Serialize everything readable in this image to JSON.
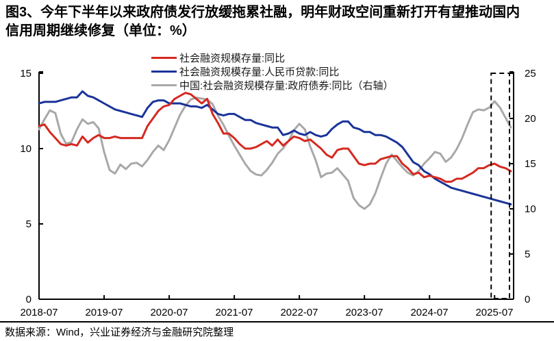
{
  "header": {
    "title_line1": "图3、今年下半年以来政府债发行放缓拖累社融，明年财政空间重新打开有望推动国内",
    "title_line2": "信用周期继续修复（单位：%）"
  },
  "footer": {
    "source": "数据来源：Wind，兴业证券经济与金融研究院整理"
  },
  "chart_data": {
    "type": "line",
    "unit": "%",
    "grid": false,
    "legend_position": "top-center",
    "x_tick_labels": [
      "2018-07",
      "2019-07",
      "2020-07",
      "2021-07",
      "2022-07",
      "2023-07",
      "2024-07",
      "2025-07"
    ],
    "left_axis": {
      "min": 0,
      "max": 15,
      "ticks": [
        0,
        5,
        10,
        15
      ]
    },
    "right_axis": {
      "min": 0,
      "max": 25,
      "ticks": [
        0,
        5,
        10,
        15,
        20,
        25
      ]
    },
    "highlight_box": {
      "from": "2025-07",
      "to": "2025-10",
      "style": "dashed"
    },
    "x": [
      "2018-07",
      "2018-08",
      "2018-09",
      "2018-10",
      "2018-11",
      "2018-12",
      "2019-01",
      "2019-02",
      "2019-03",
      "2019-04",
      "2019-05",
      "2019-06",
      "2019-07",
      "2019-08",
      "2019-09",
      "2019-10",
      "2019-11",
      "2019-12",
      "2020-01",
      "2020-02",
      "2020-03",
      "2020-04",
      "2020-05",
      "2020-06",
      "2020-07",
      "2020-08",
      "2020-09",
      "2020-10",
      "2020-11",
      "2020-12",
      "2021-01",
      "2021-02",
      "2021-03",
      "2021-04",
      "2021-05",
      "2021-06",
      "2021-07",
      "2021-08",
      "2021-09",
      "2021-10",
      "2021-11",
      "2021-12",
      "2022-01",
      "2022-02",
      "2022-03",
      "2022-04",
      "2022-05",
      "2022-06",
      "2022-07",
      "2022-08",
      "2022-09",
      "2022-10",
      "2022-11",
      "2022-12",
      "2023-01",
      "2023-02",
      "2023-03",
      "2023-04",
      "2023-05",
      "2023-06",
      "2023-07",
      "2023-08",
      "2023-09",
      "2023-10",
      "2023-11",
      "2023-12",
      "2024-01",
      "2024-02",
      "2024-03",
      "2024-04",
      "2024-05",
      "2024-06",
      "2024-07",
      "2024-08",
      "2024-09",
      "2024-10",
      "2024-11",
      "2024-12",
      "2025-01",
      "2025-02",
      "2025-03",
      "2025-04",
      "2025-05",
      "2025-06",
      "2025-07",
      "2025-08",
      "2025-09",
      "2025-10"
    ],
    "series": [
      {
        "id": "tsf-yoy",
        "name": "社会融资规模存量:同比",
        "color": "#D5281F",
        "axis": "left",
        "values": [
          11.5,
          11.6,
          11.1,
          10.7,
          10.3,
          10.2,
          10.3,
          10.2,
          10.8,
          10.4,
          10.7,
          10.9,
          10.7,
          10.7,
          10.8,
          10.7,
          10.7,
          10.7,
          10.7,
          10.7,
          11.5,
          12.0,
          12.5,
          12.8,
          12.9,
          13.3,
          13.5,
          13.7,
          13.6,
          13.3,
          13.0,
          13.3,
          12.3,
          11.7,
          11.0,
          11.0,
          10.7,
          10.3,
          10.0,
          10.0,
          10.1,
          10.3,
          10.5,
          10.2,
          10.6,
          10.2,
          10.5,
          10.8,
          10.7,
          10.5,
          10.6,
          10.3,
          10.0,
          9.6,
          9.4,
          9.9,
          10.0,
          10.0,
          9.5,
          9.0,
          8.9,
          9.0,
          9.0,
          9.3,
          9.4,
          9.5,
          9.5,
          9.0,
          8.7,
          8.3,
          8.4,
          8.1,
          8.2,
          8.1,
          8.0,
          7.8,
          7.8,
          8.0,
          8.0,
          8.2,
          8.4,
          8.7,
          8.7,
          8.9,
          9.0,
          8.8,
          8.7,
          8.5
        ]
      },
      {
        "id": "rmb-loans-yoy",
        "name": "社会融资规模存量:人民币贷款:同比",
        "color": "#1A3399",
        "axis": "left",
        "values": [
          13.0,
          13.1,
          13.1,
          13.1,
          13.2,
          13.3,
          13.4,
          13.4,
          13.8,
          13.5,
          13.4,
          13.2,
          13.0,
          12.8,
          12.6,
          12.5,
          12.4,
          12.3,
          12.2,
          12.1,
          12.7,
          13.1,
          13.2,
          13.2,
          13.0,
          13.0,
          13.0,
          12.9,
          12.8,
          12.8,
          12.7,
          12.9,
          12.6,
          12.3,
          12.2,
          12.3,
          12.3,
          12.1,
          11.9,
          11.9,
          11.7,
          11.6,
          11.5,
          11.4,
          11.4,
          10.9,
          11.0,
          11.2,
          11.0,
          10.9,
          11.1,
          10.9,
          10.8,
          10.9,
          11.3,
          11.6,
          11.8,
          11.8,
          11.4,
          11.3,
          11.1,
          11.1,
          10.9,
          10.9,
          10.8,
          10.6,
          10.4,
          10.1,
          9.6,
          9.1,
          8.9,
          8.5,
          8.3,
          8.0,
          7.8,
          7.6,
          7.4,
          7.3,
          7.2,
          7.1,
          7.0,
          6.9,
          6.8,
          6.7,
          6.6,
          6.5,
          6.4,
          6.3
        ]
      },
      {
        "id": "gov-bonds-yoy",
        "name": "中国:社会融资规模存量:政府债券:同比（右轴）",
        "color": "#A8A8A8",
        "axis": "right",
        "values": [
          18.8,
          19.9,
          20.9,
          20.6,
          18.3,
          17.2,
          17.4,
          18.8,
          19.9,
          19.4,
          19.6,
          18.9,
          16.3,
          14.3,
          13.9,
          14.9,
          14.4,
          15.0,
          15.1,
          14.7,
          15.4,
          16.3,
          17.0,
          16.5,
          17.6,
          19.0,
          20.4,
          21.4,
          22.1,
          22.3,
          22.2,
          22.1,
          21.6,
          20.3,
          19.3,
          18.1,
          17.0,
          16.0,
          15.0,
          14.2,
          13.8,
          13.7,
          14.3,
          15.1,
          16.1,
          16.7,
          17.5,
          18.7,
          19.4,
          18.8,
          16.9,
          15.4,
          13.5,
          13.9,
          14.0,
          14.5,
          13.8,
          13.1,
          11.2,
          10.4,
          10.0,
          10.5,
          11.7,
          13.4,
          15.0,
          16.0,
          15.3,
          14.6,
          14.0,
          13.7,
          14.2,
          15.0,
          15.6,
          16.3,
          16.1,
          15.2,
          15.7,
          16.6,
          17.8,
          19.3,
          20.7,
          21.0,
          20.9,
          21.2,
          21.9,
          21.2,
          20.1,
          19.0
        ]
      }
    ]
  }
}
